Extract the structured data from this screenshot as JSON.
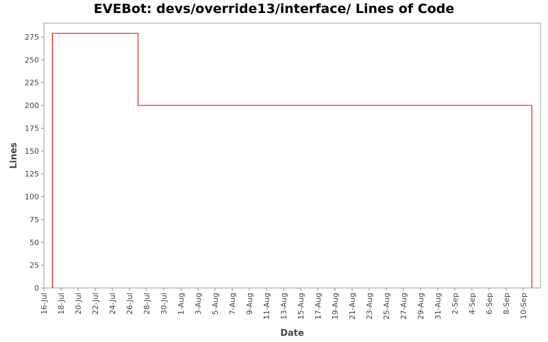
{
  "chart_data": {
    "type": "line",
    "title": "EVEBot: devs/override13/interface/ Lines of Code",
    "xlabel": "Date",
    "ylabel": "Lines",
    "x_start": "2009-07-16",
    "x_end": "2009-09-12",
    "ylim": [
      0,
      290
    ],
    "y_ticks": [
      0,
      25,
      50,
      75,
      100,
      125,
      150,
      175,
      200,
      225,
      250,
      275
    ],
    "x_ticks": [
      "16-Jul",
      "18-Jul",
      "20-Jul",
      "22-Jul",
      "24-Jul",
      "26-Jul",
      "28-Jul",
      "30-Jul",
      "1-Aug",
      "3-Aug",
      "5-Aug",
      "7-Aug",
      "9-Aug",
      "11-Aug",
      "13-Aug",
      "15-Aug",
      "17-Aug",
      "19-Aug",
      "21-Aug",
      "23-Aug",
      "25-Aug",
      "27-Aug",
      "29-Aug",
      "31-Aug",
      "2-Sep",
      "4-Sep",
      "6-Sep",
      "8-Sep",
      "10-Sep"
    ],
    "grid": false,
    "line_color": "#cc0000",
    "series": [
      {
        "points": [
          {
            "date": "2009-07-17",
            "lines": 0
          },
          {
            "date": "2009-07-17",
            "lines": 279
          },
          {
            "date": "2009-07-27",
            "lines": 279
          },
          {
            "date": "2009-07-27",
            "lines": 200
          },
          {
            "date": "2009-09-11",
            "lines": 200
          },
          {
            "date": "2009-09-11",
            "lines": 0
          }
        ]
      }
    ]
  }
}
